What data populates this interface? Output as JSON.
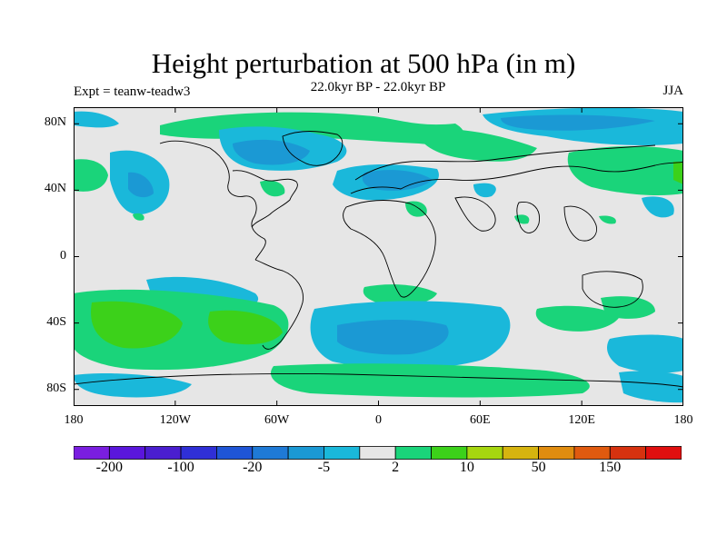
{
  "title": "Height perturbation at 500 hPa (in m)",
  "left_label": "Expt = teanw-teadw3",
  "center_label": "22.0kyr BP - 22.0kyr BP",
  "right_label": "JJA",
  "map": {
    "projection": "cylindrical-equidistant",
    "lon_range": [
      -180,
      180
    ],
    "lat_range": [
      -90,
      90
    ],
    "x_ticks": [
      {
        "lon": -180,
        "label": "180"
      },
      {
        "lon": -120,
        "label": "120W"
      },
      {
        "lon": -60,
        "label": "60W"
      },
      {
        "lon": 0,
        "label": "0"
      },
      {
        "lon": 60,
        "label": "60E"
      },
      {
        "lon": 120,
        "label": "120E"
      },
      {
        "lon": 180,
        "label": "180"
      }
    ],
    "y_ticks": [
      {
        "lat": 80,
        "label": "80N"
      },
      {
        "lat": 40,
        "label": "40N"
      },
      {
        "lat": 0,
        "label": "0"
      },
      {
        "lat": -40,
        "label": "40S"
      },
      {
        "lat": -80,
        "label": "80S"
      }
    ],
    "background_color": "#e6e6e6"
  },
  "colorbar": {
    "colors": [
      "#7a1ee0",
      "#5a16dc",
      "#4a1ecf",
      "#2f2fd6",
      "#1f55d6",
      "#1f7ad6",
      "#1b99d4",
      "#1ab8da",
      "#e6e6e6",
      "#1ad47a",
      "#3cd11a",
      "#a6d60f",
      "#d6b40f",
      "#e08c0f",
      "#e05a0f",
      "#d6320f",
      "#e00f0f"
    ],
    "labels": [
      {
        "index": 1,
        "text": "-200"
      },
      {
        "index": 3,
        "text": "-100"
      },
      {
        "index": 5,
        "text": "-20"
      },
      {
        "index": 7,
        "text": "-5"
      },
      {
        "index": 9,
        "text": "2"
      },
      {
        "index": 11,
        "text": "10"
      },
      {
        "index": 13,
        "text": "50"
      },
      {
        "index": 15,
        "text": "150"
      }
    ]
  }
}
